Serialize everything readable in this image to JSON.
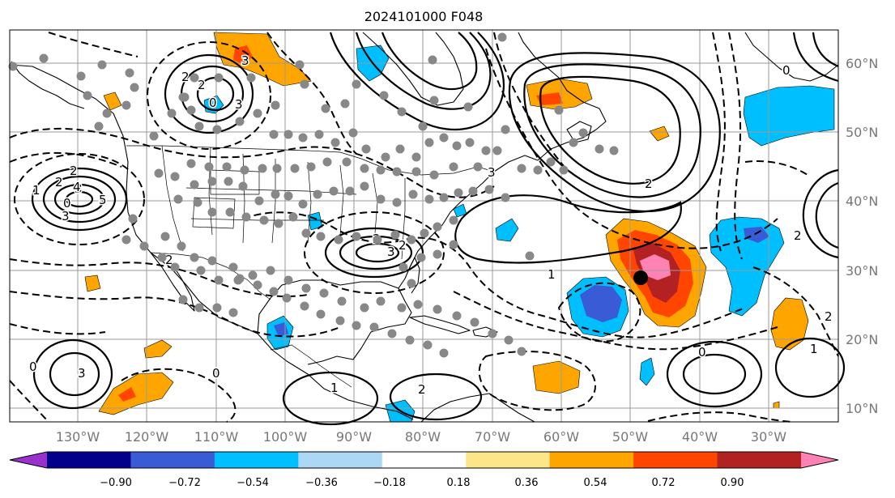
{
  "title": "2024101000 F048",
  "lon_labels": [
    "130°W",
    "120°W",
    "110°W",
    "100°W",
    "90°W",
    "80°W",
    "70°W",
    "60°W",
    "50°W",
    "40°W",
    "30°W"
  ],
  "lat_labels": [
    "60°N",
    "50°N",
    "40°N",
    "30°N",
    "20°N",
    "10°N"
  ],
  "colorbar": {
    "ticks": [
      "−0.90",
      "−0.72",
      "−0.54",
      "−0.36",
      "−0.18",
      "0.18",
      "0.36",
      "0.54",
      "0.72",
      "0.90"
    ],
    "colors": [
      "#9932cc",
      "#00008b",
      "#3a5bd6",
      "#00bfff",
      "#add8f5",
      "#ffffff",
      "#fde68a",
      "#ffa500",
      "#ff4500",
      "#b22222",
      "#ff82b4"
    ]
  },
  "contour_labels": [
    "2",
    "2",
    "3",
    "0",
    "4",
    "5",
    "3",
    "2",
    "3",
    "1",
    "2",
    "3",
    "2",
    "3",
    "3",
    "2",
    "0",
    "2",
    "0",
    "1",
    "0",
    "1",
    "2",
    "3",
    "2",
    "1",
    "0",
    "0",
    "2",
    "2"
  ],
  "marker": {
    "name": "black-dot",
    "lon": -49,
    "lat": 29
  }
}
